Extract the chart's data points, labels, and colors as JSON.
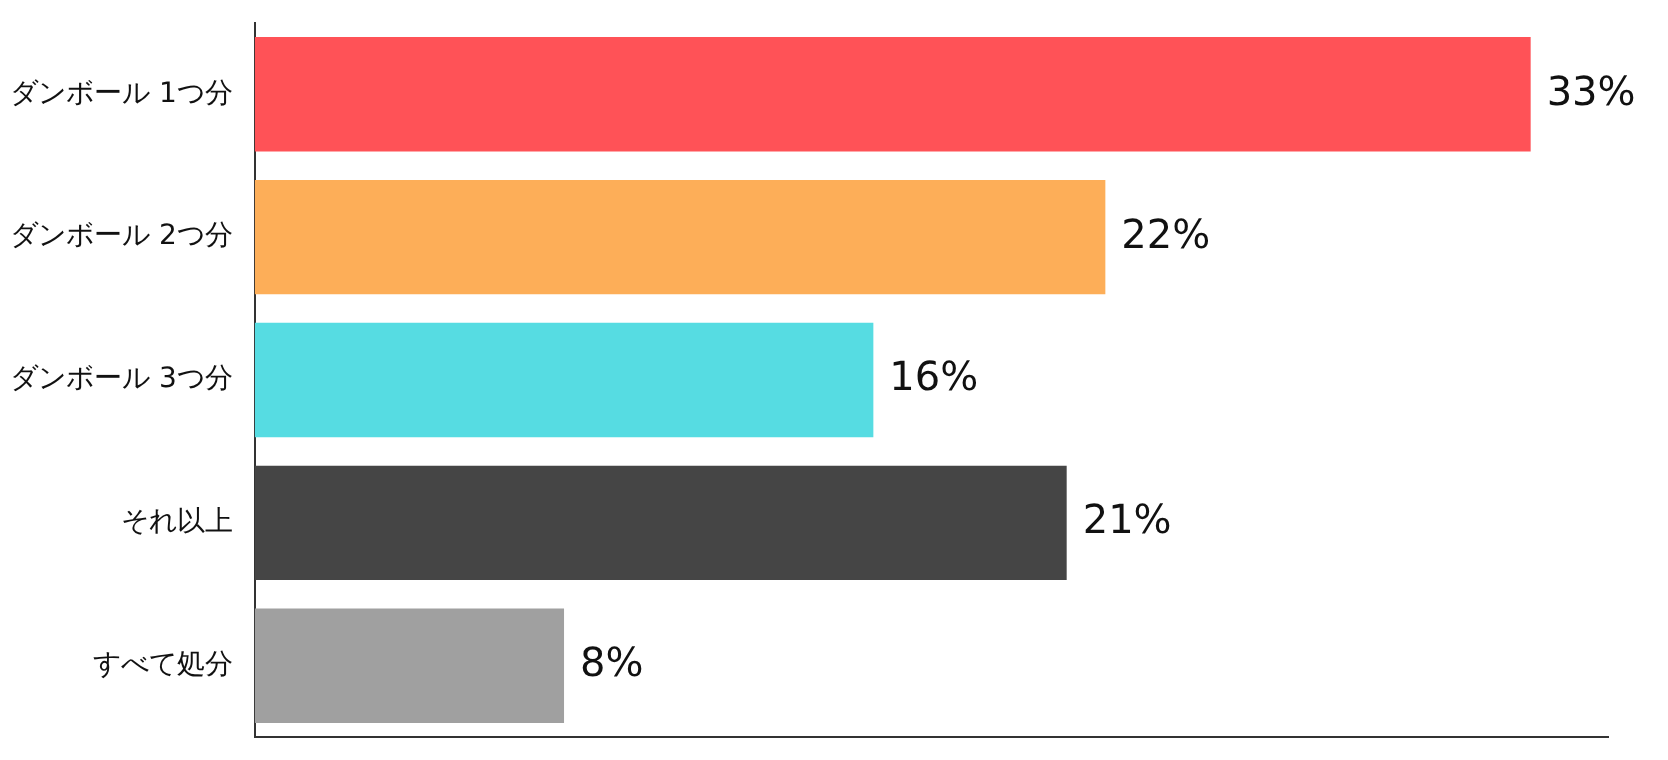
{
  "chart_data": {
    "type": "bar",
    "orientation": "horizontal",
    "categories": [
      "ダンボール 1つ分",
      "ダンボール 2つ分",
      "ダンボール 3つ分",
      "それ以上",
      "すべて処分"
    ],
    "values": [
      33,
      22,
      16,
      21,
      8
    ],
    "colors": [
      "#ff5257",
      "#fdae58",
      "#56dce2",
      "#454545",
      "#a0a0a0"
    ],
    "xlim": [
      0,
      35
    ],
    "data_labels": true,
    "value_labels": [
      "33%",
      "22%",
      "16%",
      "21%",
      "8%"
    ],
    "grid": false,
    "legend": false,
    "tick_labels": "y"
  }
}
